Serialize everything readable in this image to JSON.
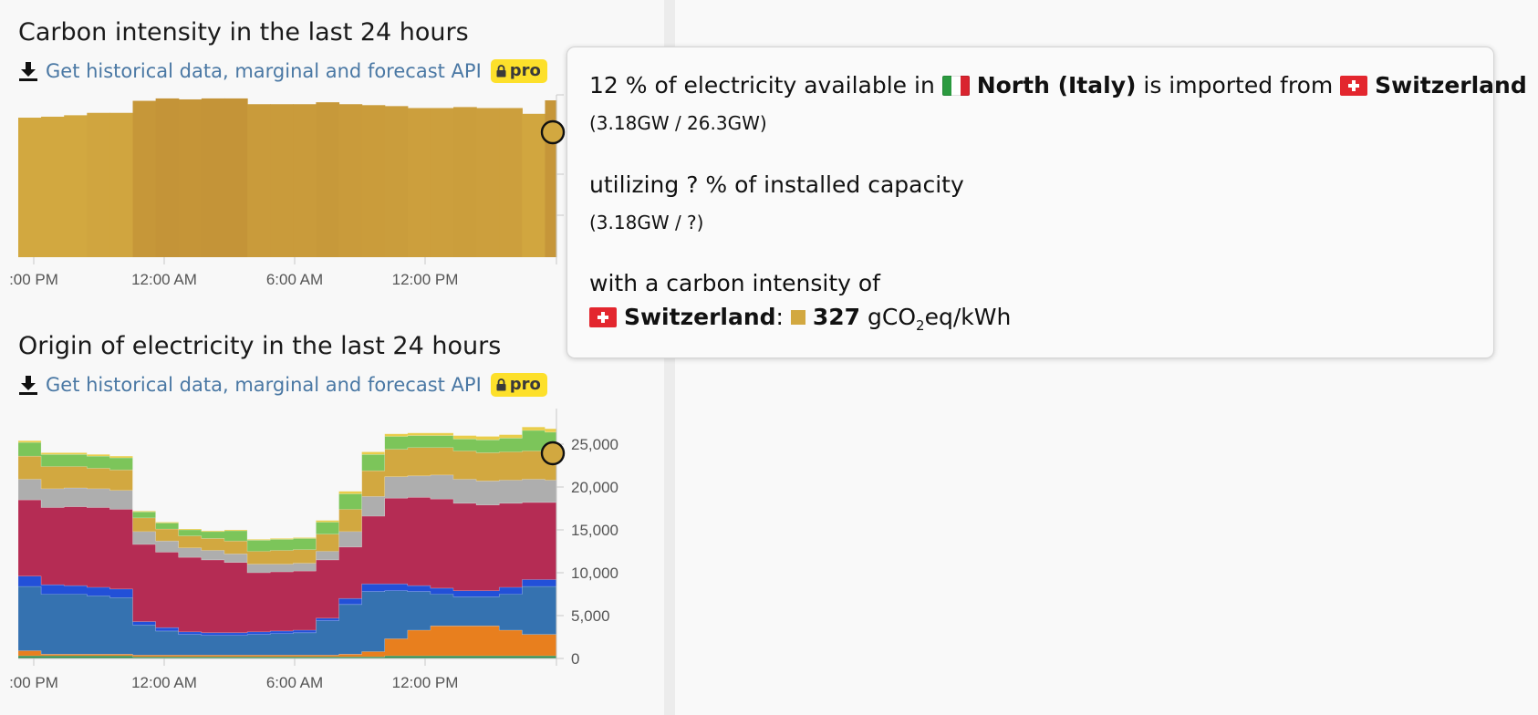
{
  "carbon_section": {
    "title": "Carbon intensity in the last 24 hours",
    "api_link": "Get historical data, marginal and forecast API",
    "pro_label": "pro",
    "x_ticks": [
      ":00 PM",
      "12:00 AM",
      "6:00 AM",
      "12:00 PM"
    ]
  },
  "origin_section": {
    "title": "Origin of electricity in the last 24 hours",
    "api_link": "Get historical data, marginal and forecast API",
    "pro_label": "pro",
    "x_ticks": [
      ":00 PM",
      "12:00 AM",
      "6:00 AM",
      "12:00 PM"
    ],
    "y_ticks": [
      "25,000",
      "20,000",
      "15,000",
      "10,000",
      "5,000",
      "0"
    ]
  },
  "tooltip": {
    "line1_pre": "12 % of electricity available in",
    "zone_name": "North (Italy)",
    "line1_mid": "is imported from",
    "from_name": "Switzerland",
    "ratio_text": "(3.18GW / 26.3GW)",
    "util_text": "utilizing ? % of installed capacity",
    "util_ratio": "(3.18GW / ?)",
    "carbon_intro": "with a carbon intensity of",
    "carbon_zone": "Switzerland",
    "carbon_value": "327",
    "unit_pre": "gCO",
    "unit_sub": "2",
    "unit_post": "eq/kWh",
    "carbon_color": "#d2a840"
  },
  "chart_data": [
    {
      "type": "area",
      "title": "Carbon intensity in the last 24 hours",
      "x": [
        "6:00 PM",
        "7:00 PM",
        "8:00 PM",
        "9:00 PM",
        "10:00 PM",
        "11:00 PM",
        "12:00 AM",
        "1:00 AM",
        "2:00 AM",
        "3:00 AM",
        "4:00 AM",
        "5:00 AM",
        "6:00 AM",
        "7:00 AM",
        "8:00 AM",
        "9:00 AM",
        "10:00 AM",
        "11:00 AM",
        "12:00 PM",
        "1:00 PM",
        "2:00 PM",
        "3:00 PM",
        "4:00 PM",
        "5:00 PM"
      ],
      "values": [
        290,
        292,
        295,
        300,
        300,
        325,
        330,
        328,
        330,
        330,
        318,
        318,
        318,
        322,
        318,
        316,
        314,
        310,
        310,
        312,
        310,
        310,
        298,
        326
      ],
      "unit": "gCO2eq/kWh",
      "colors": {
        "low": "#d2a840",
        "high": "#c49438"
      }
    },
    {
      "type": "area",
      "title": "Origin of electricity in the last 24 hours",
      "x": [
        "6:00 PM",
        "7:00 PM",
        "8:00 PM",
        "9:00 PM",
        "10:00 PM",
        "11:00 PM",
        "12:00 AM",
        "1:00 AM",
        "2:00 AM",
        "3:00 AM",
        "4:00 AM",
        "5:00 AM",
        "6:00 AM",
        "7:00 AM",
        "8:00 AM",
        "9:00 AM",
        "10:00 AM",
        "11:00 AM",
        "12:00 PM",
        "1:00 PM",
        "2:00 PM",
        "3:00 PM",
        "4:00 PM",
        "5:00 PM"
      ],
      "ylim": [
        0,
        29000
      ],
      "series": [
        {
          "color": "#2a8a4a",
          "values": [
            300,
            300,
            300,
            300,
            300,
            200,
            200,
            200,
            200,
            200,
            200,
            200,
            200,
            200,
            200,
            200,
            300,
            300,
            300,
            300,
            300,
            300,
            300,
            300
          ]
        },
        {
          "color": "#e87f1e",
          "values": [
            600,
            200,
            200,
            200,
            200,
            200,
            200,
            200,
            200,
            200,
            200,
            200,
            200,
            200,
            300,
            600,
            2000,
            3000,
            3500,
            3500,
            3500,
            3000,
            2500,
            2500
          ]
        },
        {
          "color": "#3572b0",
          "values": [
            7500,
            7000,
            7000,
            6800,
            6600,
            3500,
            2800,
            2400,
            2300,
            2300,
            2400,
            2500,
            2600,
            4000,
            5800,
            7000,
            5600,
            4500,
            3700,
            3400,
            3400,
            4200,
            5600,
            5600
          ]
        },
        {
          "color": "#2250d8",
          "values": [
            1200,
            1100,
            1000,
            1000,
            1000,
            400,
            400,
            300,
            300,
            300,
            300,
            300,
            300,
            300,
            700,
            900,
            800,
            700,
            700,
            700,
            700,
            800,
            800,
            800
          ]
        },
        {
          "color": "#b52c54",
          "values": [
            8900,
            9000,
            9200,
            9300,
            9300,
            9000,
            8800,
            8700,
            8500,
            8200,
            6900,
            6900,
            6900,
            6800,
            6000,
            7900,
            10000,
            10300,
            10400,
            10200,
            10000,
            9800,
            9000,
            9000
          ]
        },
        {
          "color": "#aeaeae",
          "values": [
            2400,
            2200,
            2200,
            2200,
            2200,
            1500,
            1300,
            1100,
            1100,
            1000,
            1000,
            900,
            900,
            1000,
            1800,
            2300,
            2500,
            2500,
            2800,
            2800,
            2800,
            2700,
            2700,
            2600
          ]
        },
        {
          "color": "#d2a840",
          "values": [
            2700,
            2600,
            2500,
            2400,
            2400,
            1600,
            1400,
            1400,
            1400,
            1500,
            1500,
            1600,
            1600,
            2000,
            2600,
            3000,
            3200,
            3300,
            3200,
            3300,
            3300,
            3300,
            3300,
            3200
          ]
        },
        {
          "color": "#7cc55a",
          "values": [
            1600,
            1400,
            1400,
            1400,
            1400,
            700,
            700,
            700,
            800,
            1200,
            1300,
            1300,
            1300,
            1400,
            1800,
            1900,
            1500,
            1400,
            1400,
            1400,
            1500,
            1600,
            2400,
            2400
          ]
        },
        {
          "color": "#e9cd4b",
          "values": [
            200,
            200,
            200,
            200,
            200,
            100,
            100,
            100,
            100,
            100,
            100,
            100,
            100,
            200,
            300,
            300,
            300,
            300,
            300,
            400,
            400,
            400,
            400,
            400
          ]
        }
      ]
    }
  ]
}
